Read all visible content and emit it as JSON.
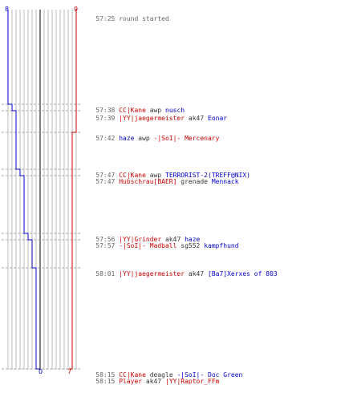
{
  "scoreboard": {
    "start_left": "8",
    "start_right": "9",
    "end_left": "0",
    "end_right": "7",
    "ct_color": "#0000cc",
    "t_color": "#cc0000"
  },
  "chart_data": {
    "type": "line",
    "series": [
      {
        "team": "ct",
        "color": "#0000cc",
        "values": [
          8,
          8,
          7,
          7,
          7,
          6,
          6,
          6,
          5,
          5,
          4,
          3,
          3,
          2,
          1,
          1,
          0,
          0
        ]
      },
      {
        "team": "t",
        "color": "#cc0000",
        "values": [
          9,
          9,
          9,
          9,
          8,
          8,
          8,
          8,
          8,
          8,
          8,
          8,
          7,
          7,
          7,
          7,
          7,
          7
        ]
      }
    ]
  },
  "log": [
    {
      "time": "57:25",
      "killer": "",
      "weapon": "",
      "victim": "",
      "text": "round started",
      "killer_team": "",
      "victim_team": ""
    },
    {
      "time": "57:38",
      "killer": "CC|Kane",
      "weapon": "awp",
      "victim": "nusch",
      "killer_team": "tt",
      "victim_team": "ct"
    },
    {
      "time": "57:39",
      "killer": "|YY|jaegermeister",
      "weapon": "ak47",
      "victim": "Eonar",
      "killer_team": "tt",
      "victim_team": "ct"
    },
    {
      "time": "57:42",
      "killer": "haze",
      "weapon": "awp",
      "victim": "-|SoI|- Mercenary",
      "killer_team": "ct",
      "victim_team": "tt"
    },
    {
      "time": "57:47",
      "killer": "CC|Kane",
      "weapon": "awp",
      "victim": "TERRORIST-2(TREFF@NIX)",
      "killer_team": "tt",
      "victim_team": "ct"
    },
    {
      "time": "57:47",
      "killer": "Hubschrau[BAER]",
      "weapon": "grenade",
      "victim": "Mennack",
      "killer_team": "tt",
      "victim_team": "ct"
    },
    {
      "time": "57:56",
      "killer": "|YY|Grinder",
      "weapon": "ak47",
      "victim": "haze",
      "killer_team": "tt",
      "victim_team": "ct"
    },
    {
      "time": "57:57",
      "killer": "-|SoI|- Madball",
      "weapon": "sg552",
      "victim": "kampfhund",
      "killer_team": "tt",
      "victim_team": "ct"
    },
    {
      "time": "58:01",
      "killer": "|YY|jaegermeister",
      "weapon": "ak47",
      "victim": "[Ba7]Xerxes of 803",
      "killer_team": "tt",
      "victim_team": "ct"
    },
    {
      "time": "58:15",
      "killer": "CC|Kane",
      "weapon": "deagle",
      "victim": "-|SoI|- Doc Green",
      "killer_team": "tt",
      "victim_team": "ct"
    },
    {
      "time": "58:15",
      "killer": "Player",
      "weapon": "ak47",
      "victim": "|YY|Raptor_FFm",
      "killer_team": "tt",
      "victim_team": "tt"
    }
  ]
}
